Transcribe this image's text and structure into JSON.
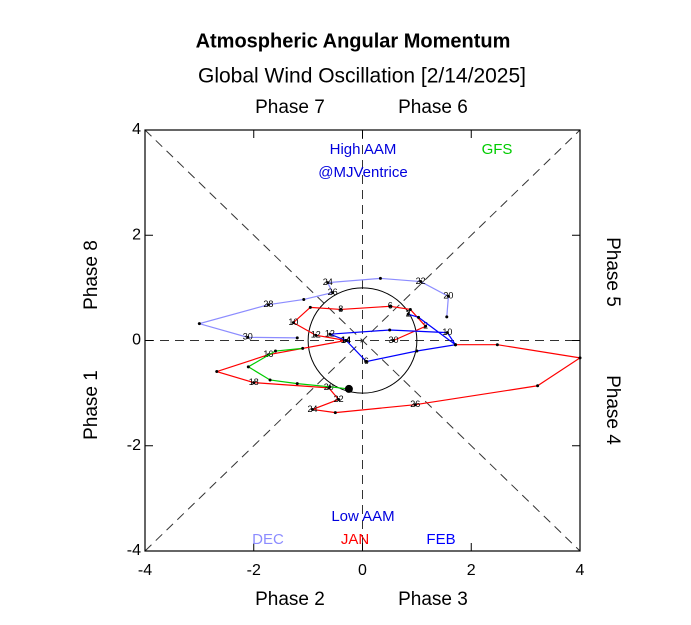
{
  "chart_data": {
    "type": "line",
    "title": "Atmospheric Angular Momentum",
    "subtitle": "Global Wind Oscillation [2/14/2025]",
    "phase_labels": [
      "Phase 7",
      "Phase 6",
      "Phase 5",
      "Phase 4",
      "Phase 3",
      "Phase 2",
      "Phase 1",
      "Phase 8"
    ],
    "annotations": [
      "High AAM",
      "@MJVentrice",
      "Low AAM"
    ],
    "xlim": [
      -4,
      4
    ],
    "ylim": [
      -4,
      4
    ],
    "xticks": [
      -4,
      -2,
      0,
      2,
      4
    ],
    "yticks": [
      -4,
      -2,
      0,
      2,
      4
    ],
    "series": [
      {
        "name": "DEC",
        "color": "#8c8cff",
        "x": [
          1.55,
          1.58,
          1.07,
          0.33,
          -0.64,
          -0.55,
          -1.08,
          -1.73,
          -3.0,
          -2.11,
          -1.2
        ],
        "y": [
          0.45,
          0.84,
          1.12,
          1.18,
          1.1,
          0.91,
          0.78,
          0.68,
          0.32,
          0.06,
          0.05
        ],
        "labels": [
          null,
          "20",
          "22",
          null,
          "24",
          "26",
          null,
          "28",
          null,
          "30",
          null
        ]
      },
      {
        "name": "JAN",
        "color": "#ff0000",
        "x": [
          0.57,
          1.16,
          0.88,
          0.51,
          -0.4,
          -0.96,
          -1.27,
          -0.86,
          -0.31,
          -1.73,
          -2.68,
          -2.0,
          -0.62,
          -0.44,
          -0.92,
          -0.5,
          0.97,
          3.22,
          4.0,
          2.48,
          1.71
        ],
        "y": [
          0.0,
          0.27,
          0.59,
          0.65,
          0.59,
          0.63,
          0.34,
          0.1,
          0.0,
          -0.27,
          -0.59,
          -0.8,
          -0.9,
          -1.12,
          -1.31,
          -1.37,
          -1.22,
          -0.86,
          -0.33,
          -0.08,
          -0.08
        ],
        "labels": [
          "30",
          "2",
          null,
          "6",
          "8",
          null,
          "10",
          "12",
          "14",
          "16",
          null,
          "18",
          "20",
          "22",
          "24",
          null,
          "26",
          null,
          null,
          null,
          null
        ]
      },
      {
        "name": "FEB",
        "color": "#0000ff",
        "x": [
          1.71,
          1.56,
          0.5,
          -0.6,
          -0.3,
          0.07,
          1.0,
          1.71,
          1.03,
          0.84
        ],
        "y": [
          -0.08,
          0.15,
          0.2,
          0.12,
          0.0,
          -0.4,
          -0.2,
          -0.08,
          0.44,
          0.5
        ],
        "labels": [
          null,
          "10",
          null,
          "12",
          "14",
          "6",
          null,
          null,
          null,
          "2"
        ]
      },
      {
        "name": "GFS",
        "color": "#00cc00",
        "x": [
          -1.1,
          -1.6,
          -2.1,
          -1.7,
          -1.2,
          -0.6,
          -0.25
        ],
        "y": [
          -0.15,
          -0.2,
          -0.5,
          -0.75,
          -0.82,
          -0.88,
          -0.92
        ],
        "labels": [
          null,
          null,
          null,
          null,
          null,
          null,
          null
        ]
      }
    ]
  }
}
